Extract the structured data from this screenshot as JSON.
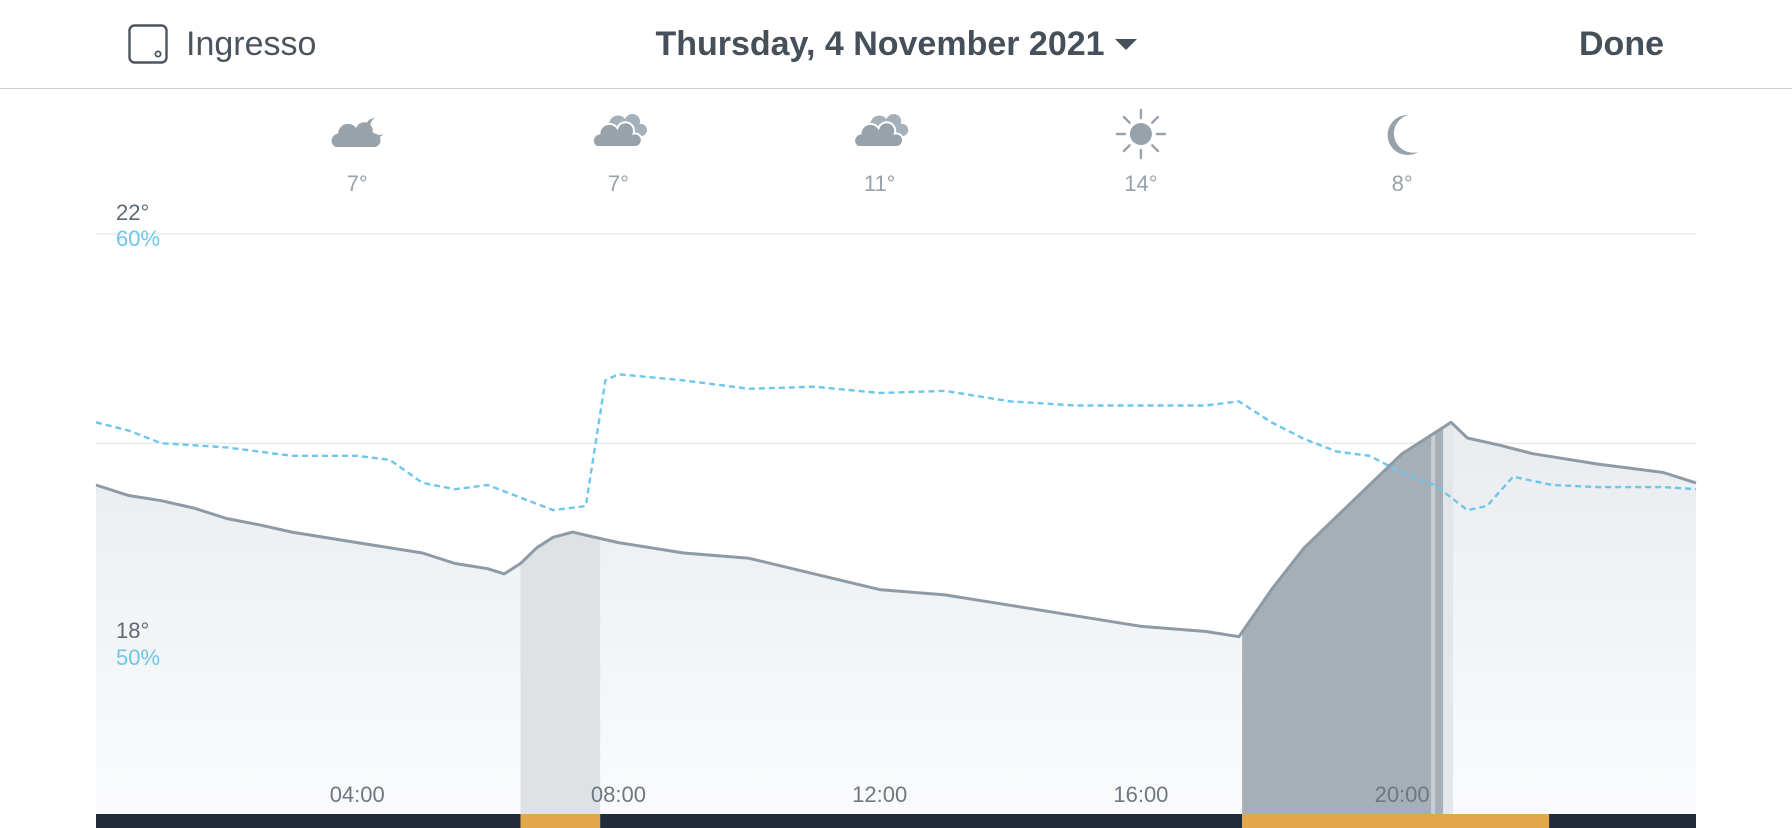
{
  "header": {
    "room_label": "Ingresso",
    "date_label": "Thursday, 4 November 2021",
    "done_label": "Done"
  },
  "colors": {
    "temperature_line": "#8e9aa5",
    "humidity_line": "#6ec6ea",
    "heating_on": "#e2a74b",
    "heating_off": "#222b3a",
    "heating_active_area": "#a6aeb6"
  },
  "weather": [
    {
      "time": "04:00",
      "icon": "cloud-moon-icon",
      "temp": "7°"
    },
    {
      "time": "08:00",
      "icon": "cloud-icon",
      "temp": "7°"
    },
    {
      "time": "12:00",
      "icon": "cloud-icon",
      "temp": "11°"
    },
    {
      "time": "16:00",
      "icon": "sun-icon",
      "temp": "14°"
    },
    {
      "time": "20:00",
      "icon": "moon-icon",
      "temp": "8°"
    }
  ],
  "chart_data": {
    "type": "area",
    "x_labels": [
      "04:00",
      "08:00",
      "12:00",
      "16:00",
      "20:00"
    ],
    "y_labels_temperature": [
      "22°",
      "18°"
    ],
    "y_labels_humidity": [
      "60%",
      "50%"
    ],
    "temperature_range": [
      16,
      22
    ],
    "humidity_range": [
      45,
      60
    ],
    "x_range_hours": [
      0,
      24.5
    ],
    "series": [
      {
        "unit": "°C",
        "points": [
          [
            0,
            19.6
          ],
          [
            0.5,
            19.5
          ],
          [
            1,
            19.45
          ],
          [
            1.5,
            19.38
          ],
          [
            2,
            19.28
          ],
          [
            2.5,
            19.22
          ],
          [
            3,
            19.15
          ],
          [
            4,
            19.05
          ],
          [
            5,
            18.95
          ],
          [
            5.5,
            18.85
          ],
          [
            6,
            18.8
          ],
          [
            6.25,
            18.75
          ],
          [
            6.5,
            18.85
          ],
          [
            6.75,
            19.0
          ],
          [
            7,
            19.1
          ],
          [
            7.3,
            19.15
          ],
          [
            7.5,
            19.12
          ],
          [
            8,
            19.05
          ],
          [
            9,
            18.95
          ],
          [
            10,
            18.9
          ],
          [
            11,
            18.75
          ],
          [
            12,
            18.6
          ],
          [
            13,
            18.55
          ],
          [
            14,
            18.45
          ],
          [
            15,
            18.35
          ],
          [
            16,
            18.25
          ],
          [
            17,
            18.2
          ],
          [
            17.5,
            18.15
          ],
          [
            18,
            18.6
          ],
          [
            18.5,
            19.0
          ],
          [
            19,
            19.3
          ],
          [
            19.5,
            19.6
          ],
          [
            20,
            19.9
          ],
          [
            20.5,
            20.1
          ],
          [
            20.75,
            20.2
          ],
          [
            21,
            20.05
          ],
          [
            21.5,
            19.98
          ],
          [
            22,
            19.9
          ],
          [
            23,
            19.8
          ],
          [
            24,
            19.72
          ],
          [
            24.5,
            19.62
          ]
        ]
      },
      {
        "unit": "%",
        "points": [
          [
            0,
            55.5
          ],
          [
            0.5,
            55.3
          ],
          [
            1,
            55.0
          ],
          [
            2,
            54.9
          ],
          [
            3,
            54.7
          ],
          [
            4,
            54.7
          ],
          [
            4.5,
            54.6
          ],
          [
            5,
            54.05
          ],
          [
            5.5,
            53.9
          ],
          [
            6,
            54.0
          ],
          [
            6.5,
            53.7
          ],
          [
            7,
            53.4
          ],
          [
            7.5,
            53.5
          ],
          [
            7.8,
            56.5
          ],
          [
            8,
            56.65
          ],
          [
            9,
            56.5
          ],
          [
            10,
            56.3
          ],
          [
            11,
            56.35
          ],
          [
            12,
            56.2
          ],
          [
            13,
            56.25
          ],
          [
            14,
            56.0
          ],
          [
            15,
            55.9
          ],
          [
            16,
            55.9
          ],
          [
            17,
            55.9
          ],
          [
            17.5,
            56.0
          ],
          [
            18,
            55.5
          ],
          [
            18.5,
            55.1
          ],
          [
            19,
            54.8
          ],
          [
            19.5,
            54.7
          ],
          [
            20,
            54.3
          ],
          [
            20.5,
            54.0
          ],
          [
            21,
            53.4
          ],
          [
            21.3,
            53.5
          ],
          [
            21.7,
            54.2
          ],
          [
            22.3,
            54.0
          ],
          [
            23,
            53.95
          ],
          [
            24,
            53.95
          ],
          [
            24.5,
            53.9
          ]
        ]
      }
    ],
    "heating_periods": [
      {
        "start": 6.5,
        "end": 7.72,
        "level": "low"
      },
      {
        "start": 17.55,
        "end": 20.75,
        "level": "high"
      }
    ],
    "schedule_bar": [
      {
        "start": 0,
        "end": 6.5,
        "state": "off"
      },
      {
        "start": 6.5,
        "end": 7.72,
        "state": "on"
      },
      {
        "start": 7.72,
        "end": 17.55,
        "state": "off"
      },
      {
        "start": 17.55,
        "end": 22.25,
        "state": "on"
      },
      {
        "start": 22.25,
        "end": 24.5,
        "state": "off"
      }
    ]
  }
}
